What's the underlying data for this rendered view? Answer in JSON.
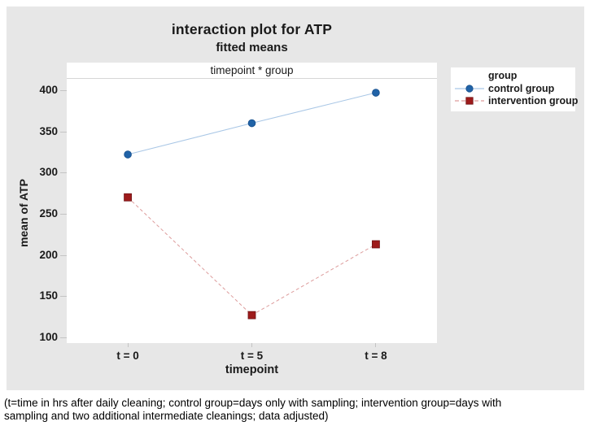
{
  "colors": {
    "figure_bg": "#e7e7e7",
    "panel_bg": "#ffffff",
    "text": "#1a1a1a",
    "tick": "#c4c4c4",
    "header_rule": "#d6d6d6"
  },
  "chart_data": {
    "type": "line",
    "title": "interaction plot for ATP",
    "subtitle": "fitted means",
    "panel_label": "timepoint * group",
    "xlabel": "timepoint",
    "ylabel": "mean of ATP",
    "legend_title": "group",
    "legend_position": "right",
    "grid": false,
    "categories": [
      "t = 0",
      "t = 5",
      "t = 8"
    ],
    "series": [
      {
        "name": "control group",
        "values": [
          322,
          360,
          397
        ],
        "marker": "circle",
        "marker_color": "#2163a7",
        "marker_edge": "#174f8c",
        "line_color": "#a9c7e6",
        "line_style": "solid"
      },
      {
        "name": "intervention group",
        "values": [
          270,
          127,
          213
        ],
        "marker": "square",
        "marker_color": "#9e1b1b",
        "marker_edge": "#6e1113",
        "line_color": "#dd9c9c",
        "line_style": "dashed"
      }
    ],
    "ylim": [
      100,
      400
    ],
    "yticks": [
      400,
      350,
      300,
      250,
      200,
      150,
      100
    ]
  },
  "caption": {
    "line1": "(t=time in hrs after daily cleaning; control group=days only with sampling; intervention group=days with",
    "line2": "sampling and two additional intermediate cleanings; data adjusted)"
  }
}
